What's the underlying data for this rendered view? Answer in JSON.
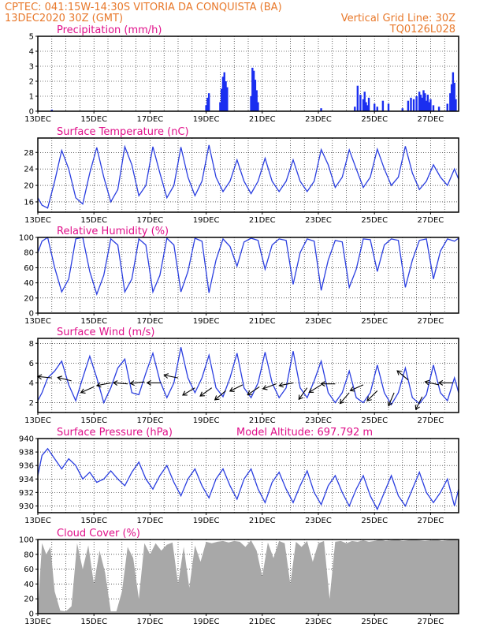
{
  "header": {
    "line1_left": "CPTEC:   041:15W-14:30S  VITORIA DA CONQUISTA (BA)",
    "line2_left": "13DEC2020 30Z (GMT)",
    "line2_right": "Vertical Grid Line: 30Z",
    "line3_right": "TQ0126L028"
  },
  "colors": {
    "header": "#e8782a",
    "title": "#e0108a",
    "line": "#2a3ee0",
    "bar": "#1a2ef0",
    "cloud": "#a8a8a8",
    "wind_arrow": "#000000"
  },
  "x_axis": {
    "range_days": [
      13.0,
      28.0
    ],
    "grid_interval_days": 0.5,
    "tick_labels": [
      "13DEC",
      "15DEC",
      "17DEC",
      "19DEC",
      "21DEC",
      "23DEC",
      "25DEC",
      "27DEC"
    ],
    "tick_days": [
      13,
      15,
      17,
      19,
      21,
      23,
      25,
      27
    ]
  },
  "chart_data": [
    {
      "id": "precip",
      "type": "bar",
      "title": "Precipitation (mm/h)",
      "extra_label": "",
      "ylim": [
        0,
        5
      ],
      "yticks": [
        0,
        1,
        2,
        3,
        4,
        5
      ],
      "grid": true,
      "x": [
        13.5,
        19.0,
        19.05,
        19.1,
        19.5,
        19.55,
        19.6,
        19.65,
        19.7,
        19.75,
        20.6,
        20.65,
        20.7,
        20.75,
        20.8,
        20.85,
        23.1,
        24.3,
        24.4,
        24.5,
        24.6,
        24.65,
        24.7,
        24.75,
        24.8,
        25.0,
        25.1,
        25.3,
        25.5,
        26.0,
        26.2,
        26.3,
        26.4,
        26.5,
        26.6,
        26.65,
        26.7,
        26.75,
        26.8,
        26.85,
        26.9,
        26.95,
        27.0,
        27.1,
        27.3,
        27.6,
        27.7,
        27.75,
        27.8,
        27.85,
        27.9
      ],
      "values": [
        0.1,
        0.4,
        0.9,
        1.2,
        0.6,
        1.5,
        2.3,
        2.6,
        2.0,
        1.6,
        1.0,
        2.9,
        2.7,
        2.1,
        1.4,
        0.6,
        0.2,
        0.3,
        1.7,
        1.1,
        0.8,
        1.3,
        0.6,
        0.4,
        0.9,
        0.5,
        0.3,
        0.7,
        0.5,
        0.2,
        0.7,
        0.9,
        0.8,
        1.0,
        1.3,
        1.1,
        0.9,
        1.4,
        1.2,
        0.7,
        1.1,
        0.6,
        0.8,
        0.4,
        0.3,
        0.5,
        1.2,
        1.8,
        2.6,
        1.9,
        0.8
      ]
    },
    {
      "id": "temp",
      "type": "line",
      "title": "Surface Temperature (nC)",
      "extra_label": "",
      "ylim": [
        13.5,
        31.5
      ],
      "yticks": [
        16,
        20,
        24,
        28
      ],
      "grid": true,
      "x": [
        13.0,
        13.15,
        13.35,
        13.6,
        13.85,
        14.1,
        14.35,
        14.6,
        14.85,
        15.1,
        15.35,
        15.6,
        15.85,
        16.1,
        16.35,
        16.6,
        16.85,
        17.1,
        17.35,
        17.6,
        17.85,
        18.1,
        18.35,
        18.6,
        18.85,
        19.1,
        19.35,
        19.6,
        19.85,
        20.1,
        20.35,
        20.6,
        20.85,
        21.1,
        21.35,
        21.6,
        21.85,
        22.1,
        22.35,
        22.6,
        22.85,
        23.1,
        23.35,
        23.6,
        23.85,
        24.1,
        24.35,
        24.6,
        24.85,
        25.1,
        25.35,
        25.6,
        25.85,
        26.1,
        26.35,
        26.6,
        26.85,
        27.1,
        27.35,
        27.6,
        27.85,
        28.0
      ],
      "values": [
        17,
        15.2,
        14.5,
        21,
        28.5,
        24,
        17,
        15.5,
        23,
        29.2,
        22,
        16,
        19,
        29.4,
        25,
        17.5,
        20,
        29.4,
        23,
        17,
        20,
        29.3,
        22,
        17.5,
        21,
        29.8,
        22,
        18.5,
        21,
        26.2,
        21,
        18,
        21,
        26.6,
        21,
        18.5,
        21,
        26.2,
        21,
        18.5,
        21,
        28.7,
        25,
        19.5,
        22,
        28.6,
        24,
        19.5,
        22,
        28.8,
        24,
        20,
        22,
        29.5,
        23,
        19,
        21,
        25,
        22,
        20,
        24,
        21.5
      ]
    },
    {
      "id": "rh",
      "type": "line",
      "title": "Relative Humidity (%)",
      "extra_label": "",
      "ylim": [
        0,
        100
      ],
      "yticks": [
        0,
        20,
        40,
        60,
        80,
        100
      ],
      "grid": true,
      "x": [
        13.0,
        13.15,
        13.35,
        13.6,
        13.85,
        14.1,
        14.35,
        14.6,
        14.85,
        15.1,
        15.35,
        15.6,
        15.85,
        16.1,
        16.35,
        16.6,
        16.85,
        17.1,
        17.35,
        17.6,
        17.85,
        18.1,
        18.35,
        18.6,
        18.85,
        19.1,
        19.35,
        19.6,
        19.85,
        20.1,
        20.35,
        20.6,
        20.85,
        21.1,
        21.35,
        21.6,
        21.85,
        22.1,
        22.35,
        22.6,
        22.85,
        23.1,
        23.35,
        23.6,
        23.85,
        24.1,
        24.35,
        24.6,
        24.85,
        25.1,
        25.35,
        25.6,
        25.85,
        26.1,
        26.35,
        26.6,
        26.85,
        27.1,
        27.35,
        27.6,
        27.85,
        28.0
      ],
      "values": [
        80,
        95,
        100,
        60,
        28,
        45,
        98,
        100,
        55,
        25,
        50,
        98,
        90,
        28,
        45,
        98,
        90,
        28,
        50,
        99,
        90,
        28,
        55,
        99,
        95,
        27,
        70,
        98,
        88,
        62,
        94,
        99,
        96,
        58,
        90,
        98,
        96,
        38,
        80,
        98,
        95,
        30,
        70,
        96,
        94,
        34,
        58,
        98,
        97,
        55,
        90,
        98,
        96,
        34,
        70,
        96,
        98,
        45,
        82,
        98,
        95,
        99
      ]
    },
    {
      "id": "wind",
      "type": "line",
      "title": "Surface Wind (m/s)",
      "extra_label": "",
      "ylim": [
        1,
        8.5
      ],
      "yticks": [
        2,
        4,
        6,
        8
      ],
      "grid": true,
      "x": [
        13.0,
        13.15,
        13.35,
        13.6,
        13.85,
        14.1,
        14.35,
        14.6,
        14.85,
        15.1,
        15.35,
        15.6,
        15.85,
        16.1,
        16.35,
        16.6,
        16.85,
        17.1,
        17.35,
        17.6,
        17.85,
        18.1,
        18.35,
        18.6,
        18.85,
        19.1,
        19.35,
        19.6,
        19.85,
        20.1,
        20.35,
        20.6,
        20.85,
        21.1,
        21.35,
        21.6,
        21.85,
        22.1,
        22.35,
        22.6,
        22.85,
        23.1,
        23.35,
        23.6,
        23.85,
        24.1,
        24.35,
        24.6,
        24.85,
        25.1,
        25.35,
        25.6,
        25.85,
        26.1,
        26.35,
        26.6,
        26.85,
        27.1,
        27.35,
        27.6,
        27.85,
        28.0
      ],
      "values": [
        2.2,
        3.0,
        4.5,
        5.2,
        6.2,
        3.8,
        2.2,
        4.5,
        6.7,
        4.5,
        2.0,
        3.5,
        5.5,
        6.4,
        3.0,
        2.8,
        5.0,
        7.0,
        4.2,
        2.5,
        4.0,
        7.6,
        4.5,
        3.0,
        4.5,
        6.8,
        3.5,
        2.6,
        4.5,
        7.0,
        3.5,
        2.5,
        4.0,
        7.1,
        4.0,
        2.5,
        3.5,
        7.2,
        3.5,
        2.5,
        4.2,
        6.2,
        3.0,
        2.0,
        3.0,
        5.2,
        2.5,
        2.0,
        3.0,
        5.8,
        3.0,
        1.8,
        3.0,
        5.5,
        2.5,
        1.9,
        2.8,
        5.8,
        3.0,
        2.2,
        4.5,
        3.0
      ],
      "arrows": {
        "x": [
          13.5,
          14.2,
          15.0,
          15.6,
          16.2,
          16.8,
          17.4,
          18.0,
          18.6,
          19.2,
          19.7,
          20.3,
          20.9,
          21.5,
          22.1,
          22.6,
          23.1,
          23.6,
          24.1,
          24.6,
          25.1,
          25.7,
          26.2,
          26.7,
          27.3,
          27.8
        ],
        "y": [
          4.5,
          4.2,
          3.6,
          4.0,
          3.9,
          4.1,
          4.0,
          4.5,
          3.5,
          3.5,
          3.2,
          3.8,
          3.6,
          3.9,
          4.0,
          3.5,
          3.8,
          3.9,
          3.0,
          3.8,
          3.2,
          3.0,
          4.3,
          2.6,
          3.8,
          4.0
        ],
        "u": [
          -1.0,
          -0.8,
          -0.9,
          -1.0,
          -1.2,
          -0.9,
          -1.1,
          -1.0,
          -1.0,
          -0.7,
          -0.6,
          -0.8,
          -0.9,
          -0.8,
          -1.0,
          -0.5,
          -0.8,
          -0.8,
          -0.6,
          -0.9,
          -0.6,
          -0.3,
          -0.6,
          -0.3,
          -0.9,
          -0.8
        ],
        "v": [
          0.1,
          0.2,
          -0.4,
          -0.2,
          0.1,
          -0.1,
          0.0,
          0.2,
          -0.6,
          -0.5,
          -0.5,
          -0.4,
          -0.6,
          -0.3,
          -0.2,
          -0.7,
          -0.5,
          0.0,
          -0.7,
          -0.4,
          -0.6,
          -0.7,
          0.5,
          -0.6,
          0.2,
          0.0
        ]
      }
    },
    {
      "id": "pres",
      "type": "line",
      "title": "Surface Pressure (hPa)",
      "extra_label": "Model Altitude: 697.792  m",
      "ylim": [
        929,
        940
      ],
      "yticks": [
        930,
        932,
        934,
        936,
        938,
        940
      ],
      "grid": true,
      "x": [
        13.0,
        13.15,
        13.35,
        13.6,
        13.85,
        14.1,
        14.35,
        14.6,
        14.85,
        15.1,
        15.35,
        15.6,
        15.85,
        16.1,
        16.35,
        16.6,
        16.85,
        17.1,
        17.35,
        17.6,
        17.85,
        18.1,
        18.35,
        18.6,
        18.85,
        19.1,
        19.35,
        19.6,
        19.85,
        20.1,
        20.35,
        20.6,
        20.85,
        21.1,
        21.35,
        21.6,
        21.85,
        22.1,
        22.35,
        22.6,
        22.85,
        23.1,
        23.35,
        23.6,
        23.85,
        24.1,
        24.35,
        24.6,
        24.85,
        25.1,
        25.35,
        25.6,
        25.85,
        26.1,
        26.35,
        26.6,
        26.85,
        27.1,
        27.35,
        27.6,
        27.85,
        28.0
      ],
      "values": [
        934.5,
        937.5,
        938.5,
        937,
        935.5,
        937,
        936,
        934,
        935,
        933.5,
        934,
        935.2,
        934,
        933,
        935,
        936.5,
        934,
        932.5,
        934.5,
        936,
        933.5,
        931.5,
        934,
        935.5,
        933,
        931.2,
        934,
        935.5,
        933,
        931,
        934,
        935.5,
        932.5,
        930.5,
        933.5,
        935,
        932.5,
        930.5,
        933,
        935.2,
        932,
        930.2,
        933,
        934.5,
        932,
        930,
        932.5,
        934.5,
        931.5,
        929.5,
        932,
        934.5,
        931.5,
        930,
        932.5,
        935,
        932,
        930.5,
        932,
        934,
        930,
        932.5
      ]
    },
    {
      "id": "cloud",
      "type": "area",
      "title": "Cloud Cover (%)",
      "extra_label": "",
      "ylim": [
        0,
        100
      ],
      "yticks": [
        0,
        20,
        40,
        60,
        80,
        100
      ],
      "grid": true,
      "x": [
        13.0,
        13.15,
        13.3,
        13.45,
        13.6,
        13.8,
        14.0,
        14.2,
        14.4,
        14.6,
        14.8,
        15.0,
        15.2,
        15.4,
        15.6,
        15.8,
        16.0,
        16.2,
        16.4,
        16.6,
        16.8,
        17.0,
        17.2,
        17.4,
        17.6,
        17.8,
        18.0,
        18.2,
        18.4,
        18.6,
        18.8,
        19.0,
        19.2,
        19.4,
        19.6,
        19.8,
        20.0,
        20.2,
        20.4,
        20.6,
        20.8,
        21.0,
        21.2,
        21.4,
        21.6,
        21.8,
        22.0,
        22.2,
        22.4,
        22.6,
        22.8,
        23.0,
        23.2,
        23.4,
        23.6,
        23.8,
        24.0,
        24.2,
        24.4,
        24.6,
        24.8,
        25.0,
        25.2,
        25.4,
        25.6,
        25.8,
        26.0,
        26.2,
        26.4,
        26.6,
        26.8,
        27.0,
        27.2,
        27.4,
        27.6,
        27.8,
        28.0
      ],
      "values": [
        5,
        95,
        80,
        90,
        30,
        4,
        3,
        10,
        95,
        60,
        92,
        40,
        85,
        55,
        3,
        3,
        30,
        90,
        75,
        20,
        95,
        80,
        95,
        85,
        93,
        96,
        40,
        90,
        35,
        92,
        70,
        97,
        95,
        97,
        98,
        96,
        98,
        97,
        90,
        99,
        85,
        50,
        96,
        75,
        98,
        95,
        40,
        97,
        90,
        98,
        70,
        95,
        98,
        20,
        97,
        98,
        95,
        98,
        97,
        99,
        97,
        98,
        100,
        98,
        99,
        100,
        98,
        99,
        100,
        99,
        98,
        99,
        100,
        98,
        99,
        100,
        99
      ]
    }
  ]
}
